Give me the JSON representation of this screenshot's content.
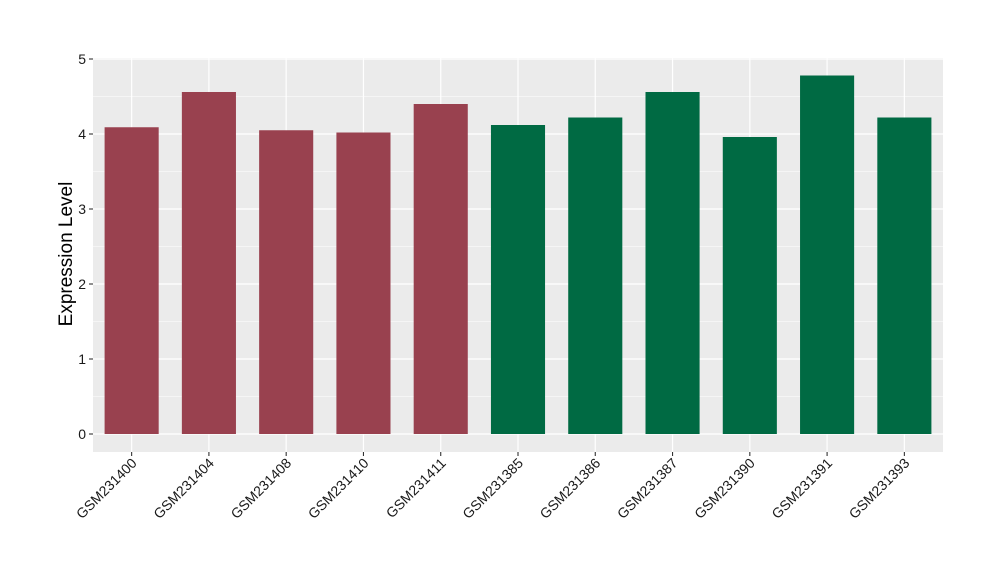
{
  "chart_data": {
    "type": "bar",
    "title": "",
    "xlabel": "",
    "ylabel": "Expression Level",
    "ylim": [
      0,
      5
    ],
    "yticks": [
      0,
      1,
      2,
      3,
      4,
      5
    ],
    "grid": true,
    "legend": "none",
    "categories": [
      "GSM231400",
      "GSM231404",
      "GSM231408",
      "GSM231410",
      "GSM231411",
      "GSM231385",
      "GSM231386",
      "GSM231387",
      "GSM231390",
      "GSM231391",
      "GSM231393"
    ],
    "values": [
      4.09,
      4.56,
      4.05,
      4.02,
      4.4,
      4.12,
      4.22,
      4.56,
      3.96,
      4.78,
      4.22
    ],
    "colors": [
      "#99414f",
      "#99414f",
      "#99414f",
      "#99414f",
      "#99414f",
      "#006a43",
      "#006a43",
      "#006a43",
      "#006a43",
      "#006a43",
      "#006a43"
    ],
    "panel_background": "#ebebeb",
    "grid_color": "#ffffff"
  }
}
